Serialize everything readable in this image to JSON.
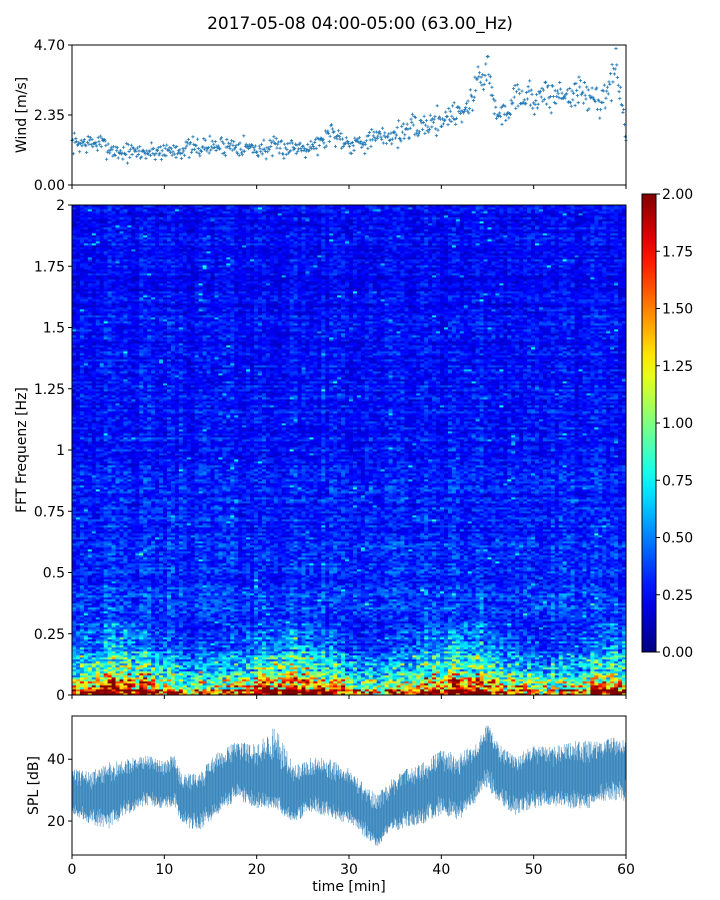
{
  "figure_title": "2017-05-08 04:00-05:00 (63.00_Hz)",
  "colors": {
    "series": "#1f77b4",
    "frame": "#000000",
    "colormap": "jet"
  },
  "chart_data": [
    {
      "id": "wind",
      "type": "scatter",
      "title": "",
      "xlabel": "",
      "ylabel": "Wind [m/s]",
      "xlim": [
        0,
        60
      ],
      "ylim": [
        0,
        4.7
      ],
      "yticks": [
        "0.00",
        "2.35",
        "4.70"
      ],
      "yticks_values": [
        0,
        2.35,
        4.7
      ],
      "marker": "+",
      "series": [
        {
          "name": "wind speed",
          "trend_x": [
            0,
            3,
            5,
            8,
            10,
            12,
            15,
            18,
            20,
            23,
            25,
            27,
            28,
            30,
            32,
            35,
            38,
            40,
            42,
            43,
            44,
            45,
            46,
            47,
            48,
            50,
            52,
            55,
            57,
            58,
            59,
            60
          ],
          "trend_y": [
            1.4,
            1.4,
            1.1,
            1.1,
            1.15,
            1.2,
            1.3,
            1.35,
            1.2,
            1.25,
            1.3,
            1.4,
            1.8,
            1.4,
            1.5,
            1.7,
            2.0,
            2.2,
            2.5,
            2.6,
            3.6,
            3.9,
            2.3,
            2.4,
            3.1,
            2.9,
            3.0,
            3.1,
            2.8,
            3.2,
            3.9,
            1.7
          ]
        }
      ]
    },
    {
      "id": "spectrogram",
      "type": "heatmap",
      "title": "",
      "xlabel": "",
      "ylabel": "FFT Frequenz [Hz]",
      "xlim": [
        0,
        60
      ],
      "ylim": [
        0,
        2
      ],
      "yticks": [
        "0",
        "0.25",
        "0.5",
        "0.75",
        "1",
        "1.25",
        "1.5",
        "1.75",
        "2"
      ],
      "yticks_values": [
        0,
        0.25,
        0.5,
        0.75,
        1,
        1.25,
        1.5,
        1.75,
        2
      ],
      "colorbar": {
        "range": [
          0,
          2
        ],
        "ticks": [
          "0.00",
          "0.25",
          "0.50",
          "0.75",
          "1.00",
          "1.25",
          "1.50",
          "1.75",
          "2.00"
        ],
        "ticks_values": [
          0,
          0.25,
          0.5,
          0.75,
          1,
          1.25,
          1.5,
          1.75,
          2
        ]
      },
      "typical_profile": {
        "freq_hz": [
          0,
          0.02,
          0.05,
          0.1,
          0.15,
          0.2,
          0.25,
          0.5,
          0.75,
          1,
          1.5,
          2
        ],
        "value": [
          1.9,
          1.6,
          1.2,
          0.75,
          0.55,
          0.45,
          0.4,
          0.32,
          0.3,
          0.28,
          0.26,
          0.24
        ]
      }
    },
    {
      "id": "spl",
      "type": "area",
      "title": "",
      "xlabel": "time [min]",
      "ylabel": "SPL [dB]",
      "xlim": [
        0,
        60
      ],
      "ylim": [
        9,
        54
      ],
      "yticks": [
        "20",
        "40"
      ],
      "yticks_values": [
        20,
        40
      ],
      "xticks": [
        "0",
        "10",
        "20",
        "30",
        "40",
        "50",
        "60"
      ],
      "xticks_values": [
        0,
        10,
        20,
        30,
        40,
        50,
        60
      ],
      "series": [
        {
          "name": "SPL",
          "x": [
            0,
            2,
            4,
            6,
            8,
            10,
            11,
            12,
            14,
            16,
            18,
            20,
            22,
            24,
            26,
            28,
            30,
            32,
            33,
            34,
            36,
            38,
            40,
            42,
            44,
            45,
            46,
            48,
            50,
            52,
            54,
            56,
            58,
            60
          ],
          "center": [
            28,
            26,
            29,
            30,
            33,
            31,
            33,
            26,
            27,
            31,
            36,
            33,
            31,
            28,
            31,
            29,
            27,
            22,
            17,
            22,
            27,
            28,
            32,
            30,
            37,
            43,
            36,
            31,
            35,
            33,
            34,
            33,
            37,
            38
          ],
          "low": [
            22,
            19,
            17,
            22,
            25,
            24,
            25,
            18,
            17,
            23,
            27,
            24,
            24,
            19,
            23,
            21,
            19,
            14,
            11,
            15,
            18,
            19,
            22,
            20,
            27,
            31,
            26,
            22,
            24,
            25,
            24,
            24,
            27,
            26
          ],
          "high": [
            37,
            36,
            39,
            40,
            42,
            39,
            42,
            35,
            37,
            43,
            46,
            45,
            51,
            38,
            41,
            40,
            37,
            31,
            29,
            32,
            37,
            39,
            43,
            42,
            46,
            52,
            46,
            41,
            45,
            44,
            46,
            46,
            47,
            47
          ]
        }
      ]
    }
  ]
}
